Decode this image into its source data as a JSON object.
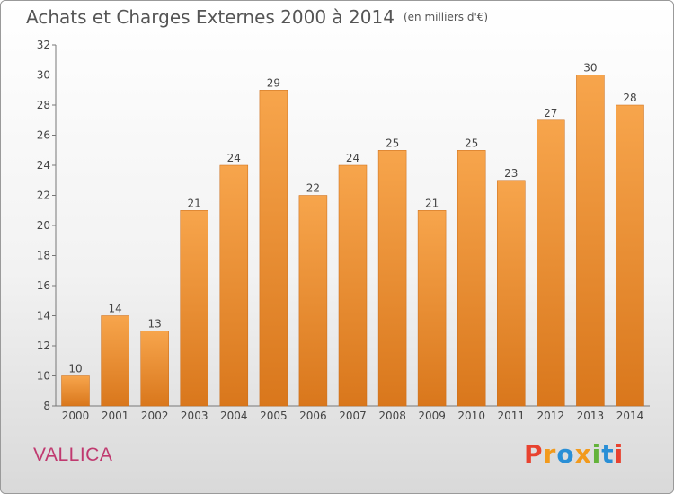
{
  "header": {
    "title": "Achats et Charges Externes 2000 à 2014",
    "unit": "(en milliers d'€)"
  },
  "footer": {
    "commune": "VALLICA",
    "logo_text": "Proxiti",
    "logo_colors": [
      "#e8422f",
      "#f29a1c",
      "#2a8fd6",
      "#f29a1c",
      "#63b33b",
      "#2a8fd6",
      "#e8422f"
    ]
  },
  "colors": {
    "bar_top": "#f7a54c",
    "bar_bottom": "#d9771c",
    "commune_text": "#c0396f"
  },
  "chart_data": {
    "type": "bar",
    "title": "Achats et Charges Externes 2000 à 2014",
    "subtitle": "(en milliers d'€)",
    "xlabel": "",
    "ylabel": "",
    "categories": [
      "2000",
      "2001",
      "2002",
      "2003",
      "2004",
      "2005",
      "2006",
      "2007",
      "2008",
      "2009",
      "2010",
      "2011",
      "2012",
      "2013",
      "2014"
    ],
    "values": [
      10,
      14,
      13,
      21,
      24,
      29,
      22,
      24,
      25,
      21,
      25,
      23,
      27,
      30,
      28
    ],
    "ylim": [
      8,
      32
    ],
    "yticks": [
      8,
      10,
      12,
      14,
      16,
      18,
      20,
      22,
      24,
      26,
      28,
      30,
      32
    ],
    "grid": false,
    "legend": "none"
  }
}
